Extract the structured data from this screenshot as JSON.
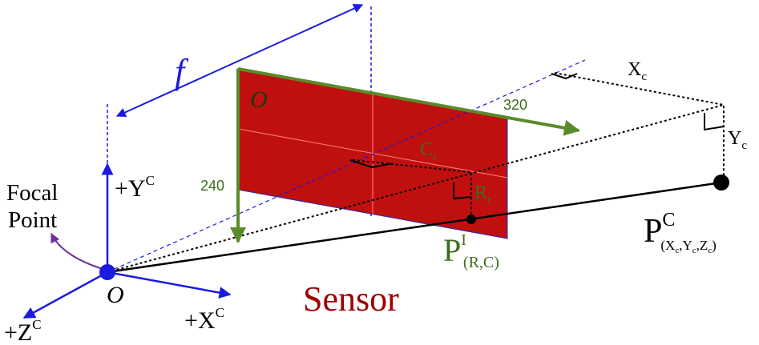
{
  "colors": {
    "sensor_fill": "#c00f0f",
    "axis_blue": "#1a1ae0",
    "arrow_green": "#5a8a2a",
    "label_green": "#3c6e1c",
    "sensor_label": "#a00000",
    "curve_purple": "#7030a0",
    "black": "#000000"
  },
  "labels": {
    "focal_length": "f",
    "focal_point_line1": "Focal",
    "focal_point_line2": "Point",
    "origin_camera": "O",
    "origin_image": "O",
    "y_axis": {
      "base": "+Y",
      "sup": "C"
    },
    "x_axis": {
      "base": "+X",
      "sup": "C"
    },
    "z_axis": {
      "base": "+Z",
      "sup": "C"
    },
    "image_width": "320",
    "image_height": "240",
    "col_offset": {
      "base": "C",
      "sub": "r"
    },
    "row_offset": {
      "base": "R",
      "sub": "r"
    },
    "image_point": {
      "base": "P",
      "sup": "I",
      "sub": "(R,C)"
    },
    "world_x": {
      "base": "X",
      "sub": "c"
    },
    "world_y": {
      "base": "Y",
      "sub": "c"
    },
    "world_point": {
      "base": "P",
      "sup": "C",
      "sub_open": "(X",
      "sub_c1": "c",
      "sub_mid1": ",Y",
      "sub_c2": "c",
      "sub_mid2": ",Z",
      "sub_c3": "c",
      "sub_close": ")"
    },
    "sensor": "Sensor"
  }
}
